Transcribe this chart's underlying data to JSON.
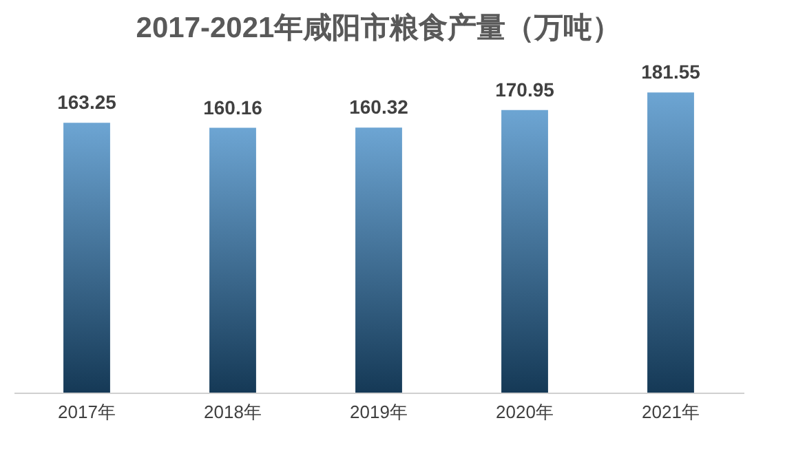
{
  "chart_data": {
    "type": "bar",
    "title": "2017-2021年咸阳市粮食产量（万吨）",
    "categories": [
      "2017年",
      "2018年",
      "2019年",
      "2020年",
      "2021年"
    ],
    "values": [
      163.25,
      160.16,
      160.32,
      170.95,
      181.55
    ],
    "color": "#2f7fc0",
    "data_labels": true,
    "tick_labels": "x"
  }
}
